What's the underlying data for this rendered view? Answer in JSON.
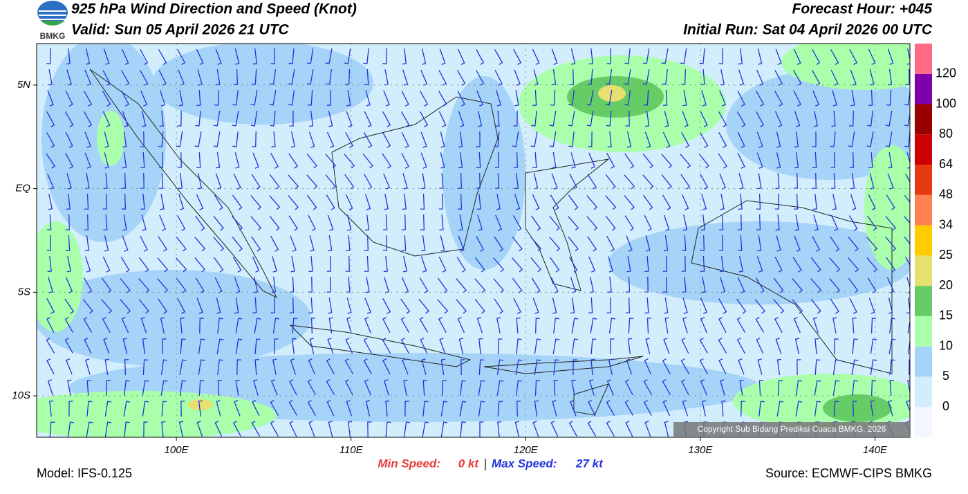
{
  "header": {
    "title": "925 hPa Wind Direction and Speed (Knot)",
    "valid": "Valid: Sun 05 April 2026 21 UTC",
    "forecast_hour": "Forecast Hour: +045",
    "initial_run": "Initial Run: Sat 04 April 2026 00 UTC",
    "logo": "BMKG"
  },
  "map": {
    "xlim": [
      92,
      142
    ],
    "ylim": [
      -12,
      7
    ],
    "xticks": [
      {
        "value": 100,
        "label": "100E"
      },
      {
        "value": 110,
        "label": "110E"
      },
      {
        "value": 120,
        "label": "120E"
      },
      {
        "value": 130,
        "label": "130E"
      },
      {
        "value": 140,
        "label": "140E"
      }
    ],
    "yticks": [
      {
        "value": 5,
        "label": "5N"
      },
      {
        "value": 0,
        "label": "EQ"
      },
      {
        "value": -5,
        "label": "5S"
      },
      {
        "value": -10,
        "label": "10S"
      }
    ],
    "copyright": "Copyright Sub Bidang Prediksi Cuaca BMKG, 2026"
  },
  "colorbar": {
    "levels": [
      0,
      5,
      10,
      15,
      20,
      25,
      34,
      48,
      64,
      80,
      100,
      120
    ],
    "colors": [
      "#f2f8ff",
      "#d2edfc",
      "#a6d3f8",
      "#aaffaa",
      "#66cc66",
      "#e6e070",
      "#ffcc00",
      "#ff8050",
      "#e63a10",
      "#cc0000",
      "#990000",
      "#7d00a8",
      "#ff6a86"
    ]
  },
  "footer": {
    "model": "Model: IFS-0.125",
    "source": "Source: ECMWF-CIPS BMKG",
    "min_label": "Min Speed:",
    "min_value": "0 kt",
    "max_label": "Max Speed:",
    "max_value": "27 kt"
  }
}
